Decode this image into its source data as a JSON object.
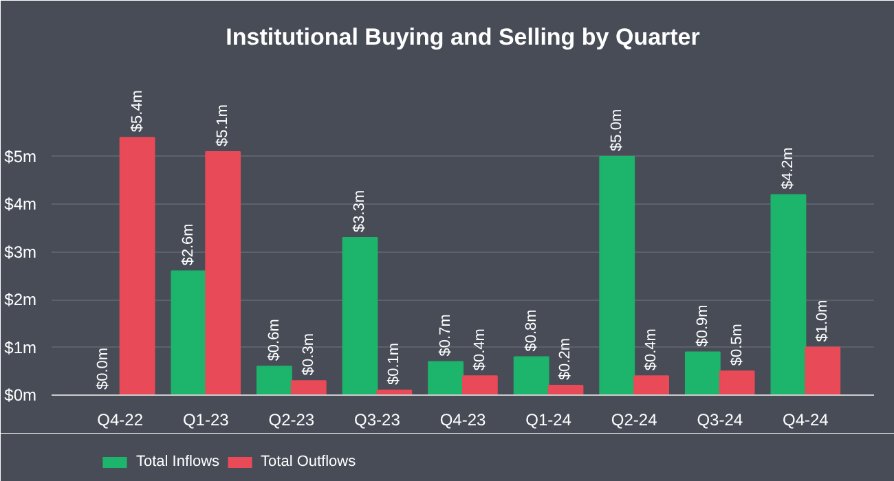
{
  "chart_data": {
    "type": "bar",
    "title": "Institutional Buying and Selling by Quarter",
    "categories": [
      "Q4-22",
      "Q1-23",
      "Q2-23",
      "Q3-23",
      "Q4-23",
      "Q1-24",
      "Q2-24",
      "Q3-24",
      "Q4-24"
    ],
    "series": [
      {
        "name": "Total Inflows",
        "color": "#1db46c",
        "values": [
          0.0,
          2.6,
          0.6,
          3.3,
          0.7,
          0.8,
          5.0,
          0.9,
          4.2
        ],
        "value_labels": [
          "$0.0m",
          "$2.6m",
          "$0.6m",
          "$3.3m",
          "$0.7m",
          "$0.8m",
          "$5.0m",
          "$0.9m",
          "$4.2m"
        ]
      },
      {
        "name": "Total Outflows",
        "color": "#e84a57",
        "values": [
          5.4,
          5.1,
          0.3,
          0.1,
          0.4,
          0.2,
          0.4,
          0.5,
          1.0
        ],
        "value_labels": [
          "$5.4m",
          "$5.1m",
          "$0.3m",
          "$0.1m",
          "$0.4m",
          "$0.2m",
          "$0.4m",
          "$0.5m",
          "$1.0m"
        ]
      }
    ],
    "ylim": [
      0,
      6.8
    ],
    "yticks": [
      {
        "value": 0,
        "label": "$0m"
      },
      {
        "value": 1,
        "label": "$1m"
      },
      {
        "value": 2,
        "label": "$2m"
      },
      {
        "value": 3,
        "label": "$3m"
      },
      {
        "value": 4,
        "label": "$4m"
      },
      {
        "value": 5,
        "label": "$5m"
      }
    ],
    "grid": "y",
    "legend": "bottom left"
  }
}
